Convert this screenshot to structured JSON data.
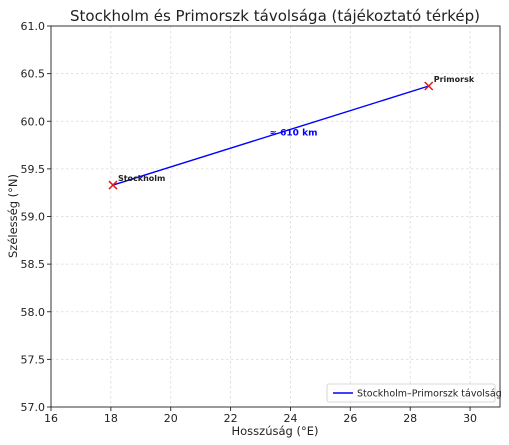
{
  "chart_data": {
    "type": "line",
    "title": "Stockholm és Primorszk távolsága (tájékoztató térkép)",
    "xlabel": "Hosszúság (°E)",
    "ylabel": "Szélesség (°N)",
    "xlim": [
      16,
      31
    ],
    "ylim": [
      57.0,
      61.0
    ],
    "xticks": [
      16,
      18,
      20,
      22,
      24,
      26,
      28,
      30
    ],
    "xtick_labels": [
      "16",
      "18",
      "20",
      "22",
      "24",
      "26",
      "28",
      "30"
    ],
    "yticks": [
      57.0,
      57.5,
      58.0,
      58.5,
      59.0,
      59.5,
      60.0,
      60.5,
      61.0
    ],
    "ytick_labels": [
      "57.0",
      "57.5",
      "58.0",
      "58.5",
      "59.0",
      "59.5",
      "60.0",
      "60.5",
      "61.0"
    ],
    "grid": true,
    "legend_position": "bottom-right",
    "series": [
      {
        "name": "Stockholm–Primorszk távolság",
        "color": "#0000ff",
        "x": [
          18.07,
          28.62
        ],
        "y": [
          59.33,
          60.37
        ]
      }
    ],
    "points": [
      {
        "label": "Stockholm",
        "x": 18.07,
        "y": 59.33,
        "color": "#e31a1c",
        "marker": "x"
      },
      {
        "label": "Primorsk",
        "x": 28.62,
        "y": 60.37,
        "color": "#e31a1c",
        "marker": "x"
      }
    ],
    "annotation": {
      "text": "≈ 610 km",
      "x": 23.6,
      "y": 59.89,
      "color": "#0000ff"
    }
  }
}
